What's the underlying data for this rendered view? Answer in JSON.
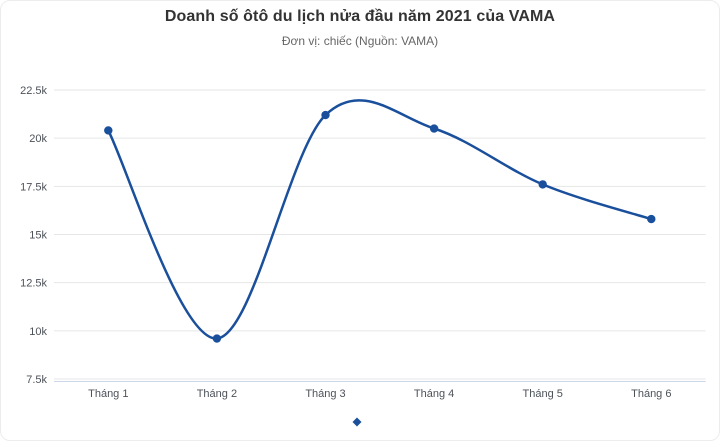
{
  "page": {
    "background_color": "#ffffff",
    "border_color": "#ececec"
  },
  "chart_data": {
    "type": "line",
    "line_style": "spline",
    "title": "Doanh số ôtô du lịch nửa đầu năm 2021 của VAMA",
    "subtitle": "Đơn vị: chiếc (Nguồn: VAMA)",
    "categories": [
      "Tháng 1",
      "Tháng 2",
      "Tháng 3",
      "Tháng 4",
      "Tháng 5",
      "Tháng 6"
    ],
    "series": [
      {
        "name": "",
        "values": [
          20400,
          9600,
          21200,
          20500,
          17600,
          15800
        ]
      }
    ],
    "xlabel": "",
    "ylabel": "",
    "ylim": [
      7500,
      22500
    ],
    "yticks": [
      7500,
      10000,
      12500,
      15000,
      17500,
      20000,
      22500
    ],
    "ytick_labels": [
      "7.5k",
      "10k",
      "12.5k",
      "15k",
      "17.5k",
      "20k",
      "22.5k"
    ],
    "grid": true,
    "legend": {
      "position": "bottom-center",
      "marker_only": true,
      "marker_shape": "diamond"
    },
    "colors": {
      "series": "#1a4f9c",
      "gridline": "#e6e6e6",
      "axis_line": "#ccd6eb",
      "title": "#333333",
      "subtitle": "#666666",
      "tick_label": "#4d5259"
    }
  }
}
